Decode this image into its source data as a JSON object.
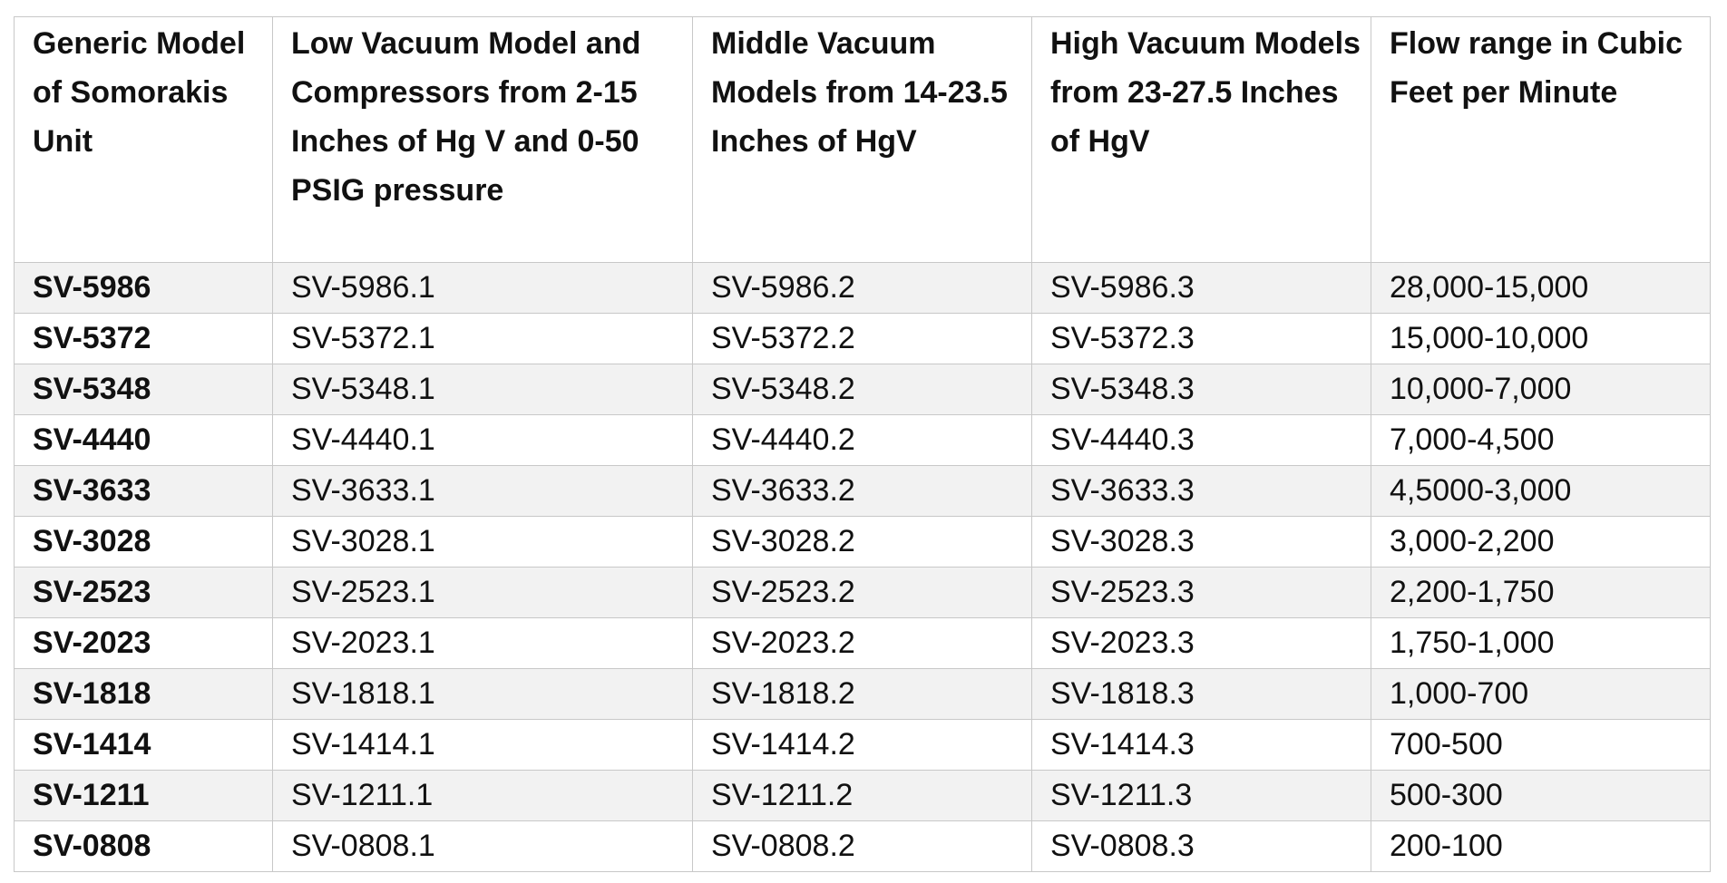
{
  "table": {
    "header": [
      "Generic Model of Somorakis Unit",
      "Low Vacuum Model and Compressors from 2-15 Inches of Hg V and 0-50 PSIG pressure",
      "Middle Vacuum Models from 14-23.5 Inches of HgV",
      "High Vacuum Models from 23-27.5 Inches of HgV",
      "Flow range in Cubic Feet per Minute"
    ],
    "rows": [
      [
        "SV-5986",
        "SV-5986.1",
        "SV-5986.2",
        "SV-5986.3",
        "28,000-15,000"
      ],
      [
        "SV-5372",
        "SV-5372.1",
        "SV-5372.2",
        "SV-5372.3",
        "15,000-10,000"
      ],
      [
        "SV-5348",
        "SV-5348.1",
        "SV-5348.2",
        "SV-5348.3",
        "10,000-7,000"
      ],
      [
        "SV-4440",
        "SV-4440.1",
        "SV-4440.2",
        "SV-4440.3",
        "7,000-4,500"
      ],
      [
        "SV-3633",
        "SV-3633.1",
        "SV-3633.2",
        "SV-3633.3",
        "4,5000-3,000"
      ],
      [
        "SV-3028",
        "SV-3028.1",
        "SV-3028.2",
        "SV-3028.3",
        "3,000-2,200"
      ],
      [
        "SV-2523",
        "SV-2523.1",
        "SV-2523.2",
        "SV-2523.3",
        "2,200-1,750"
      ],
      [
        "SV-2023",
        "SV-2023.1",
        "SV-2023.2",
        "SV-2023.3",
        "1,750-1,000"
      ],
      [
        "SV-1818",
        "SV-1818.1",
        "SV-1818.2",
        "SV-1818.3",
        "1,000-700"
      ],
      [
        "SV-1414",
        "SV-1414.1",
        "SV-1414.2",
        "SV-1414.3",
        "700-500"
      ],
      [
        "SV-1211",
        "SV-1211.1",
        "SV-1211.2",
        "SV-1211.3",
        "500-300"
      ],
      [
        "SV-0808",
        "SV-0808.1",
        "SV-0808.2",
        "SV-0808.3",
        "200-100"
      ]
    ]
  }
}
